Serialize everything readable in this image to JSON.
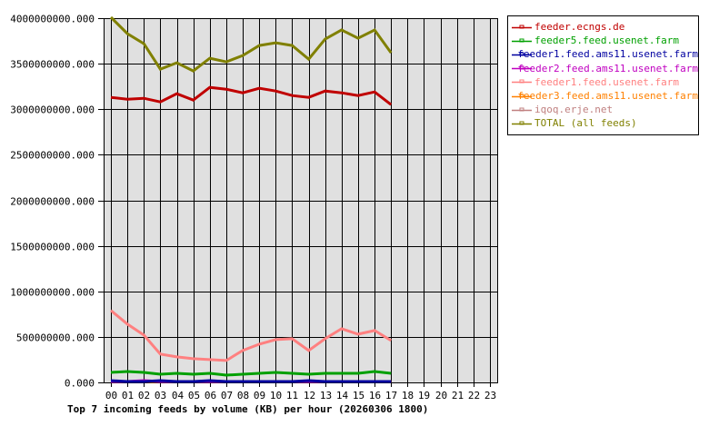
{
  "chart_data": {
    "type": "line",
    "title": "Top 7 incoming feeds by volume (KB) per hour (20260306 1800)",
    "xlabel": "",
    "ylabel": "",
    "ylim": [
      0,
      4000000000
    ],
    "grid": true,
    "legend_position": "right",
    "x": [
      "00",
      "01",
      "02",
      "03",
      "04",
      "05",
      "06",
      "07",
      "08",
      "09",
      "10",
      "11",
      "12",
      "13",
      "14",
      "15",
      "16",
      "17",
      "18",
      "19",
      "20",
      "21",
      "22",
      "23"
    ],
    "y_ticks": [
      "0.000",
      "500000000.000",
      "1000000000.000",
      "1500000000.000",
      "2000000000.000",
      "2500000000.000",
      "3000000000.000",
      "3500000000.000",
      "4000000000.000"
    ],
    "series": [
      {
        "name": "feeder.ecngs.de",
        "color": "#c00000",
        "values": [
          3120000000,
          3100000000,
          3110000000,
          3070000000,
          3160000000,
          3090000000,
          3230000000,
          3210000000,
          3170000000,
          3220000000,
          3190000000,
          3140000000,
          3120000000,
          3190000000,
          3170000000,
          3140000000,
          3180000000,
          3040000000
        ]
      },
      {
        "name": "feeder5.feed.usenet.farm",
        "color": "#00a000",
        "values": [
          100000000,
          110000000,
          100000000,
          80000000,
          90000000,
          80000000,
          90000000,
          70000000,
          80000000,
          90000000,
          100000000,
          90000000,
          80000000,
          90000000,
          90000000,
          90000000,
          110000000,
          90000000
        ]
      },
      {
        "name": "feeder1.feed.ams11.usenet.farm",
        "color": "#0000a0",
        "values": [
          10000000,
          0,
          0,
          10000000,
          0,
          0,
          10000000,
          0,
          0,
          0,
          0,
          0,
          10000000,
          0,
          0,
          0,
          0,
          0
        ]
      },
      {
        "name": "feeder2.feed.ams11.usenet.farm",
        "color": "#c000c0",
        "values": [
          0,
          0,
          10000000,
          0,
          0,
          0,
          0,
          0,
          0,
          0,
          0,
          0,
          0,
          0,
          0,
          0,
          0,
          0
        ]
      },
      {
        "name": "feeder1.feed.usenet.farm",
        "color": "#ff8080",
        "values": [
          780000000,
          630000000,
          510000000,
          300000000,
          270000000,
          250000000,
          240000000,
          230000000,
          340000000,
          410000000,
          460000000,
          470000000,
          340000000,
          470000000,
          580000000,
          520000000,
          560000000,
          450000000
        ]
      },
      {
        "name": "feeder3.feed.ams11.usenet.farm",
        "color": "#ff8000",
        "values": [
          0,
          0,
          0,
          0,
          0,
          0,
          0,
          0,
          0,
          0,
          0,
          0,
          0,
          0,
          0,
          0,
          0,
          0
        ]
      },
      {
        "name": "iqoq.erje.net",
        "color": "#c08080",
        "values": [
          0,
          0,
          0,
          0,
          0,
          0,
          0,
          0,
          0,
          0,
          0,
          0,
          0,
          0,
          0,
          0,
          0,
          0
        ]
      },
      {
        "name": "TOTAL (all feeds)",
        "color": "#808000",
        "values": [
          4000000000,
          3820000000,
          3710000000,
          3430000000,
          3500000000,
          3410000000,
          3550000000,
          3510000000,
          3580000000,
          3690000000,
          3720000000,
          3690000000,
          3540000000,
          3760000000,
          3860000000,
          3770000000,
          3860000000,
          3610000000
        ]
      }
    ]
  },
  "caption": "Top 7 incoming feeds by volume (KB) per hour (20260306 1800)",
  "colors": {
    "plot_bg": "#e0e0e0",
    "grid": "#000000",
    "page_bg": "#ffffff"
  }
}
